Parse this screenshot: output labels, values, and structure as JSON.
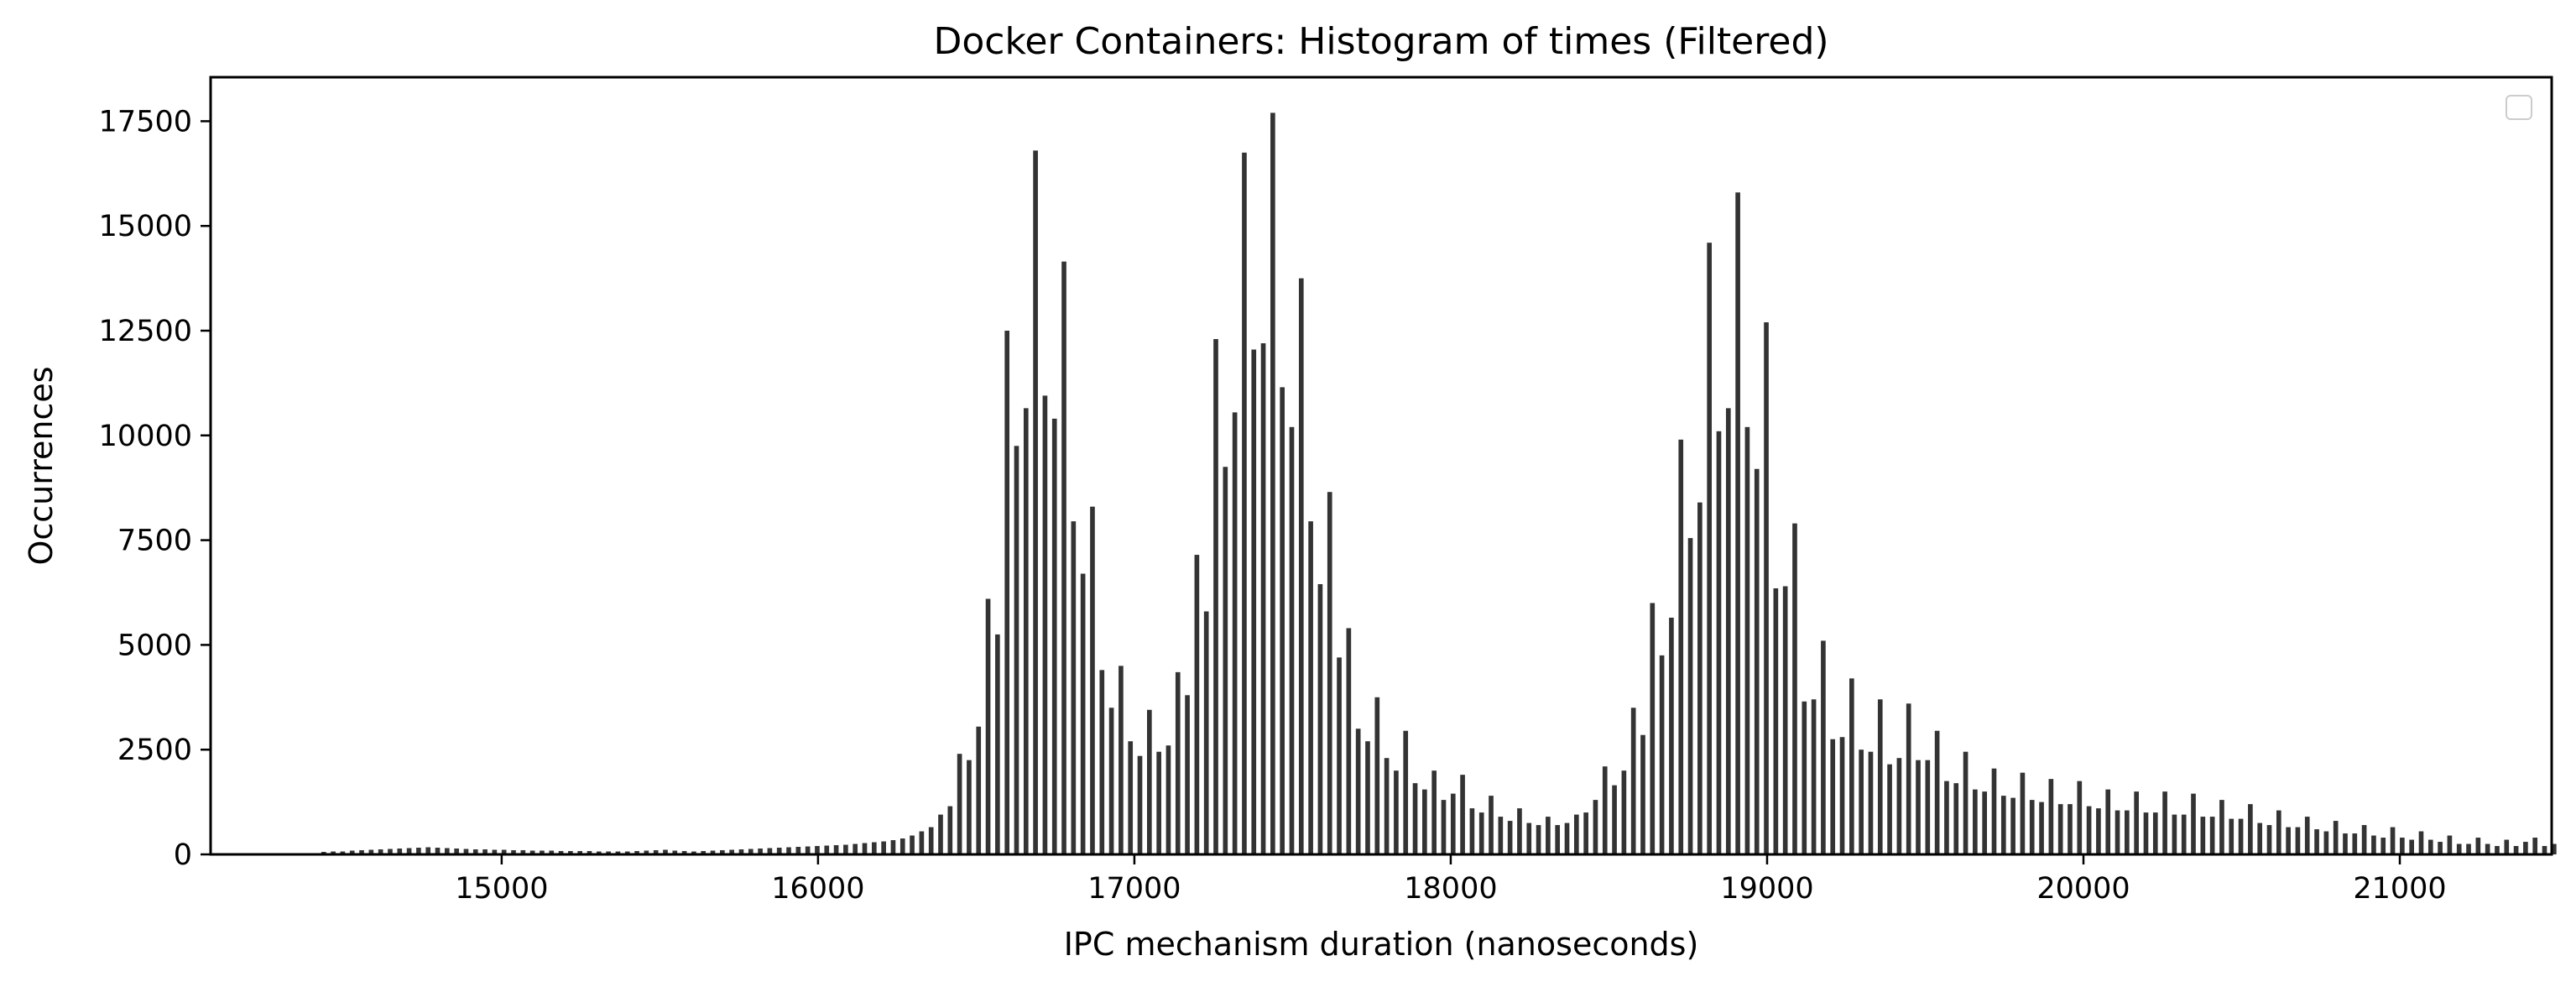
{
  "chart_data": {
    "type": "bar",
    "title": "Docker Containers: Histogram of times (Filtered)",
    "xlabel": "IPC mechanism duration (nanoseconds)",
    "ylabel": "Occurrences",
    "xlim": [
      14080,
      21480
    ],
    "ylim": [
      0,
      18550
    ],
    "xticks": [
      15000,
      16000,
      17000,
      18000,
      19000,
      20000,
      21000
    ],
    "yticks": [
      0,
      2500,
      5000,
      7500,
      10000,
      12500,
      15000,
      17500
    ],
    "bin_width": 15,
    "bar_color": "#333333",
    "legend": "top-right",
    "grid": false,
    "bins": [
      [
        14430,
        60
      ],
      [
        14460,
        70
      ],
      [
        14490,
        70
      ],
      [
        14520,
        90
      ],
      [
        14550,
        100
      ],
      [
        14580,
        110
      ],
      [
        14610,
        120
      ],
      [
        14640,
        130
      ],
      [
        14670,
        140
      ],
      [
        14700,
        150
      ],
      [
        14730,
        160
      ],
      [
        14760,
        170
      ],
      [
        14790,
        160
      ],
      [
        14820,
        150
      ],
      [
        14850,
        140
      ],
      [
        14880,
        130
      ],
      [
        14910,
        120
      ],
      [
        14940,
        120
      ],
      [
        14970,
        110
      ],
      [
        15000,
        110
      ],
      [
        15030,
        100
      ],
      [
        15060,
        100
      ],
      [
        15090,
        90
      ],
      [
        15120,
        90
      ],
      [
        15150,
        90
      ],
      [
        15180,
        80
      ],
      [
        15210,
        80
      ],
      [
        15240,
        80
      ],
      [
        15270,
        80
      ],
      [
        15300,
        70
      ],
      [
        15330,
        70
      ],
      [
        15360,
        70
      ],
      [
        15390,
        70
      ],
      [
        15420,
        80
      ],
      [
        15450,
        90
      ],
      [
        15480,
        100
      ],
      [
        15510,
        110
      ],
      [
        15540,
        90
      ],
      [
        15570,
        80
      ],
      [
        15600,
        70
      ],
      [
        15630,
        80
      ],
      [
        15660,
        90
      ],
      [
        15690,
        100
      ],
      [
        15720,
        110
      ],
      [
        15750,
        120
      ],
      [
        15780,
        130
      ],
      [
        15810,
        140
      ],
      [
        15840,
        150
      ],
      [
        15870,
        160
      ],
      [
        15900,
        170
      ],
      [
        15930,
        180
      ],
      [
        15960,
        190
      ],
      [
        15990,
        200
      ],
      [
        16020,
        210
      ],
      [
        16050,
        220
      ],
      [
        16080,
        230
      ],
      [
        16110,
        250
      ],
      [
        16140,
        270
      ],
      [
        16170,
        290
      ],
      [
        16200,
        310
      ],
      [
        16230,
        340
      ],
      [
        16260,
        380
      ],
      [
        16290,
        450
      ],
      [
        16320,
        550
      ],
      [
        16350,
        650
      ],
      [
        16380,
        950
      ],
      [
        16410,
        1150
      ],
      [
        16440,
        2400
      ],
      [
        16470,
        2250
      ],
      [
        16500,
        3050
      ],
      [
        16530,
        6100
      ],
      [
        16560,
        5250
      ],
      [
        16590,
        12500
      ],
      [
        16620,
        9750
      ],
      [
        16650,
        10650
      ],
      [
        16680,
        16800
      ],
      [
        16710,
        10950
      ],
      [
        16740,
        10400
      ],
      [
        16770,
        14150
      ],
      [
        16800,
        7950
      ],
      [
        16830,
        6700
      ],
      [
        16860,
        8300
      ],
      [
        16890,
        4400
      ],
      [
        16920,
        3500
      ],
      [
        16950,
        4500
      ],
      [
        16980,
        2700
      ],
      [
        17010,
        2350
      ],
      [
        17040,
        3450
      ],
      [
        17070,
        2450
      ],
      [
        17100,
        2600
      ],
      [
        17130,
        4350
      ],
      [
        17160,
        3800
      ],
      [
        17190,
        7150
      ],
      [
        17220,
        5800
      ],
      [
        17250,
        12300
      ],
      [
        17280,
        9250
      ],
      [
        17310,
        10550
      ],
      [
        17340,
        16750
      ],
      [
        17370,
        12050
      ],
      [
        17400,
        12200
      ],
      [
        17430,
        17700
      ],
      [
        17460,
        11150
      ],
      [
        17490,
        10200
      ],
      [
        17520,
        13750
      ],
      [
        17550,
        7950
      ],
      [
        17580,
        6450
      ],
      [
        17610,
        8650
      ],
      [
        17640,
        4700
      ],
      [
        17670,
        5400
      ],
      [
        17700,
        3000
      ],
      [
        17730,
        2700
      ],
      [
        17760,
        3750
      ],
      [
        17790,
        2300
      ],
      [
        17820,
        2000
      ],
      [
        17850,
        2950
      ],
      [
        17880,
        1700
      ],
      [
        17910,
        1550
      ],
      [
        17940,
        2000
      ],
      [
        17970,
        1300
      ],
      [
        18000,
        1450
      ],
      [
        18030,
        1900
      ],
      [
        18060,
        1100
      ],
      [
        18090,
        1000
      ],
      [
        18120,
        1400
      ],
      [
        18150,
        900
      ],
      [
        18180,
        800
      ],
      [
        18210,
        1100
      ],
      [
        18240,
        750
      ],
      [
        18270,
        700
      ],
      [
        18300,
        900
      ],
      [
        18330,
        700
      ],
      [
        18360,
        750
      ],
      [
        18390,
        950
      ],
      [
        18420,
        1000
      ],
      [
        18450,
        1300
      ],
      [
        18480,
        2100
      ],
      [
        18510,
        1650
      ],
      [
        18540,
        2000
      ],
      [
        18570,
        3500
      ],
      [
        18600,
        2850
      ],
      [
        18630,
        6000
      ],
      [
        18660,
        4750
      ],
      [
        18690,
        5650
      ],
      [
        18720,
        9900
      ],
      [
        18750,
        7550
      ],
      [
        18780,
        8400
      ],
      [
        18810,
        14600
      ],
      [
        18840,
        10100
      ],
      [
        18870,
        10650
      ],
      [
        18900,
        15800
      ],
      [
        18930,
        10200
      ],
      [
        18960,
        9200
      ],
      [
        18990,
        12700
      ],
      [
        19020,
        6350
      ],
      [
        19050,
        6400
      ],
      [
        19080,
        7900
      ],
      [
        19110,
        3650
      ],
      [
        19140,
        3700
      ],
      [
        19170,
        5100
      ],
      [
        19200,
        2750
      ],
      [
        19230,
        2800
      ],
      [
        19260,
        4200
      ],
      [
        19290,
        2500
      ],
      [
        19320,
        2450
      ],
      [
        19350,
        3700
      ],
      [
        19380,
        2150
      ],
      [
        19410,
        2300
      ],
      [
        19440,
        3600
      ],
      [
        19470,
        2250
      ],
      [
        19500,
        2250
      ],
      [
        19530,
        2950
      ],
      [
        19560,
        1750
      ],
      [
        19590,
        1700
      ],
      [
        19620,
        2450
      ],
      [
        19650,
        1550
      ],
      [
        19680,
        1500
      ],
      [
        19710,
        2050
      ],
      [
        19740,
        1400
      ],
      [
        19770,
        1350
      ],
      [
        19800,
        1950
      ],
      [
        19830,
        1300
      ],
      [
        19860,
        1250
      ],
      [
        19890,
        1800
      ],
      [
        19920,
        1200
      ],
      [
        19950,
        1200
      ],
      [
        19980,
        1750
      ],
      [
        20010,
        1150
      ],
      [
        20040,
        1100
      ],
      [
        20070,
        1550
      ],
      [
        20100,
        1050
      ],
      [
        20130,
        1050
      ],
      [
        20160,
        1500
      ],
      [
        20190,
        1000
      ],
      [
        20220,
        1000
      ],
      [
        20250,
        1500
      ],
      [
        20280,
        950
      ],
      [
        20310,
        950
      ],
      [
        20340,
        1450
      ],
      [
        20370,
        900
      ],
      [
        20400,
        900
      ],
      [
        20430,
        1300
      ],
      [
        20460,
        850
      ],
      [
        20490,
        850
      ],
      [
        20520,
        1200
      ],
      [
        20550,
        750
      ],
      [
        20580,
        700
      ],
      [
        20610,
        1050
      ],
      [
        20640,
        650
      ],
      [
        20670,
        650
      ],
      [
        20700,
        900
      ],
      [
        20730,
        600
      ],
      [
        20760,
        550
      ],
      [
        20790,
        800
      ],
      [
        20820,
        500
      ],
      [
        20850,
        500
      ],
      [
        20880,
        700
      ],
      [
        20910,
        450
      ],
      [
        20940,
        400
      ],
      [
        20970,
        650
      ],
      [
        21000,
        400
      ],
      [
        21030,
        350
      ],
      [
        21060,
        550
      ],
      [
        21090,
        350
      ],
      [
        21120,
        300
      ],
      [
        21150,
        450
      ],
      [
        21180,
        250
      ],
      [
        21210,
        250
      ],
      [
        21240,
        400
      ],
      [
        21270,
        250
      ],
      [
        21300,
        200
      ],
      [
        21330,
        350
      ],
      [
        21360,
        200
      ],
      [
        21390,
        300
      ],
      [
        21420,
        400
      ],
      [
        21450,
        200
      ],
      [
        21480,
        250
      ]
    ]
  }
}
